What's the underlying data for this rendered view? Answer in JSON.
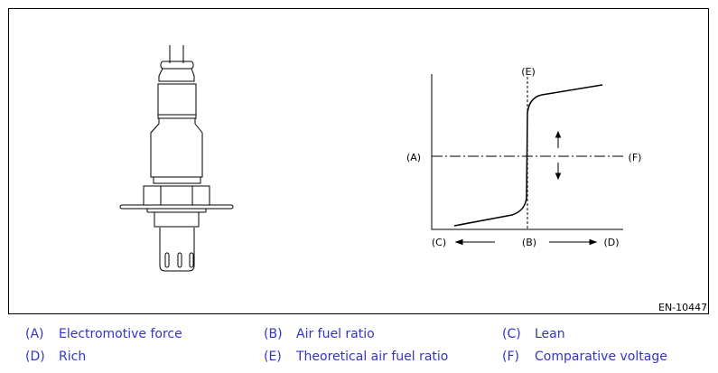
{
  "figure_code": "EN-10447",
  "graph_labels": {
    "A": "(A)",
    "B": "(B)",
    "C": "(C)",
    "D": "(D)",
    "E": "(E)",
    "F": "(F)"
  },
  "legend": [
    {
      "key": "(A)",
      "text": "Electromotive force"
    },
    {
      "key": "(B)",
      "text": "Air fuel ratio"
    },
    {
      "key": "(C)",
      "text": "Lean"
    },
    {
      "key": "(D)",
      "text": "Rich"
    },
    {
      "key": "(E)",
      "text": "Theoretical air fuel ratio"
    },
    {
      "key": "(F)",
      "text": "Comparative voltage"
    }
  ],
  "colors": {
    "legend_text": "#3333cc",
    "line": "#000000"
  }
}
